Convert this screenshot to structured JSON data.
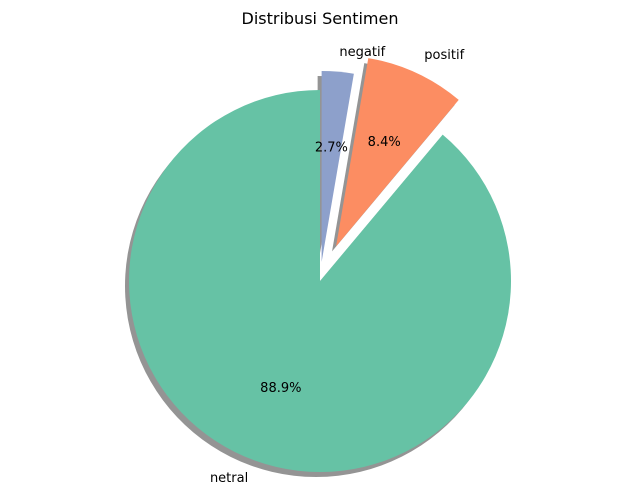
{
  "chart_data": {
    "type": "pie",
    "title": "Distribusi Sentimen",
    "categories": [
      "netral",
      "positif",
      "negatif"
    ],
    "values": [
      88.9,
      8.4,
      2.7
    ],
    "percent_labels": [
      "88.9%",
      "8.4%",
      "2.7%"
    ],
    "colors": [
      "#66c2a5",
      "#fc8d62",
      "#8da0cb"
    ],
    "explode": [
      0,
      0.2,
      0.1
    ],
    "start_angle_deg": 90,
    "direction": "counterclockwise",
    "shadow": true,
    "legend": "none"
  }
}
